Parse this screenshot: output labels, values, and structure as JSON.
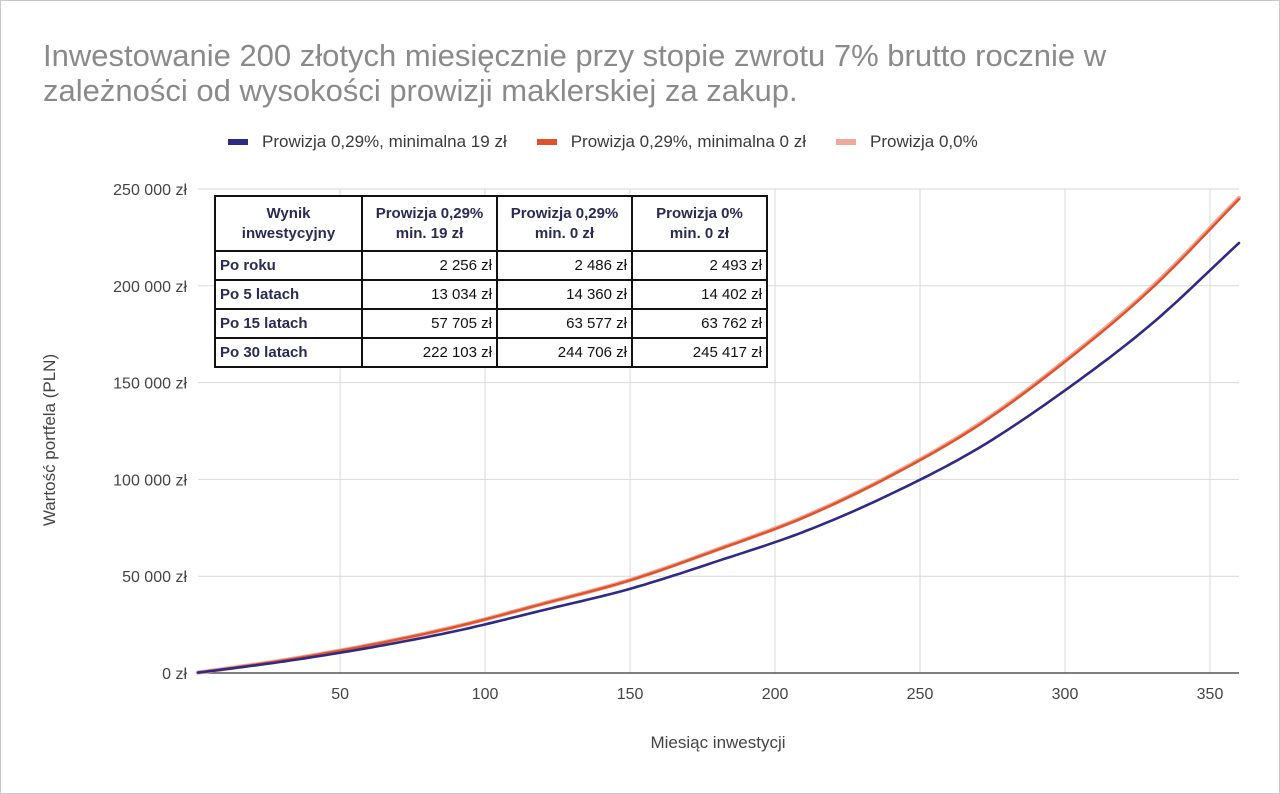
{
  "chart_data": {
    "type": "line",
    "title": "Inwestowanie 200 złotych miesięcznie przy stopie zwrotu 7% brutto rocznie w zależności od wysokości prowizji maklerskiej za zakup.",
    "xlabel": "Miesiąc inwestycji",
    "ylabel": "Wartość portfela (PLN)",
    "xlim": [
      1,
      360
    ],
    "ylim": [
      0,
      250000
    ],
    "x_ticks": [
      "50",
      "100",
      "150",
      "200",
      "250",
      "300",
      "350"
    ],
    "x_tick_values": [
      50,
      100,
      150,
      200,
      250,
      300,
      350
    ],
    "y_ticks": [
      "0 zł",
      "50 000 zł",
      "100 000 zł",
      "150 000 zł",
      "200 000 zł",
      "250 000 zł"
    ],
    "y_tick_values": [
      0,
      50000,
      100000,
      150000,
      200000,
      250000
    ],
    "grid": true,
    "legend_position": "top",
    "series": [
      {
        "name": "Prowizja 0,29%, minimalna 19 zł",
        "color": "#2e2a86",
        "x": [
          1,
          12,
          30,
          60,
          90,
          120,
          150,
          180,
          210,
          240,
          270,
          300,
          330,
          360
        ],
        "y": [
          181,
          2256,
          5830,
          13034,
          21700,
          32450,
          43500,
          57705,
          73000,
          92500,
          116000,
          146000,
          180500,
          222103
        ]
      },
      {
        "name": "Prowizja 0,29%, minimalna 0 zł",
        "color": "#e0522a",
        "x": [
          1,
          12,
          30,
          60,
          90,
          120,
          150,
          180,
          210,
          240,
          270,
          300,
          330,
          360
        ],
        "y": [
          199,
          2486,
          6420,
          14360,
          23900,
          35750,
          47900,
          63577,
          80400,
          101900,
          127800,
          160800,
          198800,
          244706
        ]
      },
      {
        "name": "Prowizja 0,0%",
        "color": "#f0a898",
        "x": [
          1,
          12,
          30,
          60,
          90,
          120,
          150,
          180,
          210,
          240,
          270,
          300,
          330,
          360
        ],
        "y": [
          200,
          2493,
          6440,
          14402,
          24000,
          35850,
          48050,
          63762,
          80650,
          102200,
          128200,
          161300,
          199400,
          245417
        ]
      }
    ]
  },
  "table": {
    "headers": [
      [
        "Wynik",
        "inwestycyjny"
      ],
      [
        "Prowizja 0,29%",
        "min. 19 zł"
      ],
      [
        "Prowizja 0,29%",
        "min. 0 zł"
      ],
      [
        "Prowizja 0%",
        "min. 0 zł"
      ]
    ],
    "rows": [
      {
        "label": "Po roku",
        "values": [
          "2 256 zł",
          "2 486 zł",
          "2 493 zł"
        ]
      },
      {
        "label": "Po 5 latach",
        "values": [
          "13 034 zł",
          "14 360 zł",
          "14 402 zł"
        ]
      },
      {
        "label": "Po 15 latach",
        "values": [
          "57 705 zł",
          "63 577 zł",
          "63 762 zł"
        ]
      },
      {
        "label": "Po 30 latach",
        "values": [
          "222 103 zł",
          "244 706 zł",
          "245 417 zł"
        ]
      }
    ]
  },
  "colors": {
    "title": "#8a8a8a",
    "grid": "#d9d9d9",
    "axis": "#333333",
    "table_border": "#111111"
  }
}
